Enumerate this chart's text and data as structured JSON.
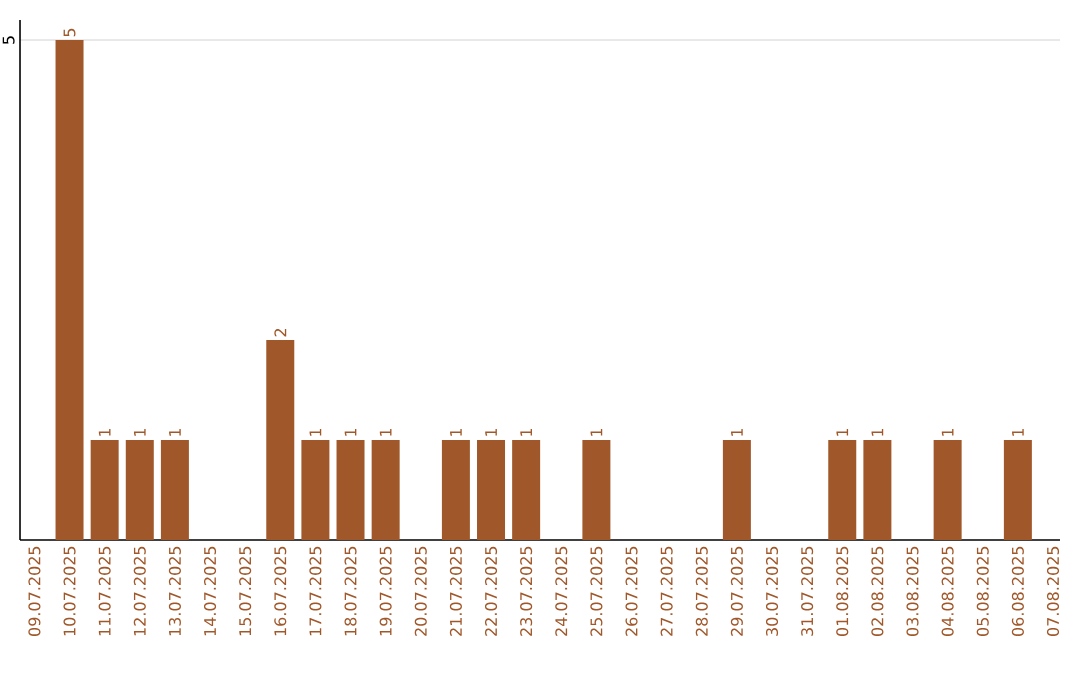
{
  "chart_data": {
    "type": "bar",
    "categories": [
      "09.07.2025",
      "10.07.2025",
      "11.07.2025",
      "12.07.2025",
      "13.07.2025",
      "14.07.2025",
      "15.07.2025",
      "16.07.2025",
      "17.07.2025",
      "18.07.2025",
      "19.07.2025",
      "20.07.2025",
      "21.07.2025",
      "22.07.2025",
      "23.07.2025",
      "24.07.2025",
      "25.07.2025",
      "26.07.2025",
      "27.07.2025",
      "28.07.2025",
      "29.07.2025",
      "30.07.2025",
      "31.07.2025",
      "01.08.2025",
      "02.08.2025",
      "03.08.2025",
      "04.08.2025",
      "05.08.2025",
      "06.08.2025",
      "07.08.2025"
    ],
    "values": [
      null,
      5,
      1,
      1,
      1,
      null,
      null,
      2,
      1,
      1,
      1,
      null,
      1,
      1,
      1,
      null,
      1,
      null,
      null,
      null,
      1,
      null,
      null,
      1,
      1,
      null,
      1,
      null,
      1,
      null
    ],
    "color": "#a0582a",
    "ylim": [
      0,
      5.2
    ],
    "yticks": [
      5
    ],
    "grid": "y",
    "data_labels": true
  }
}
